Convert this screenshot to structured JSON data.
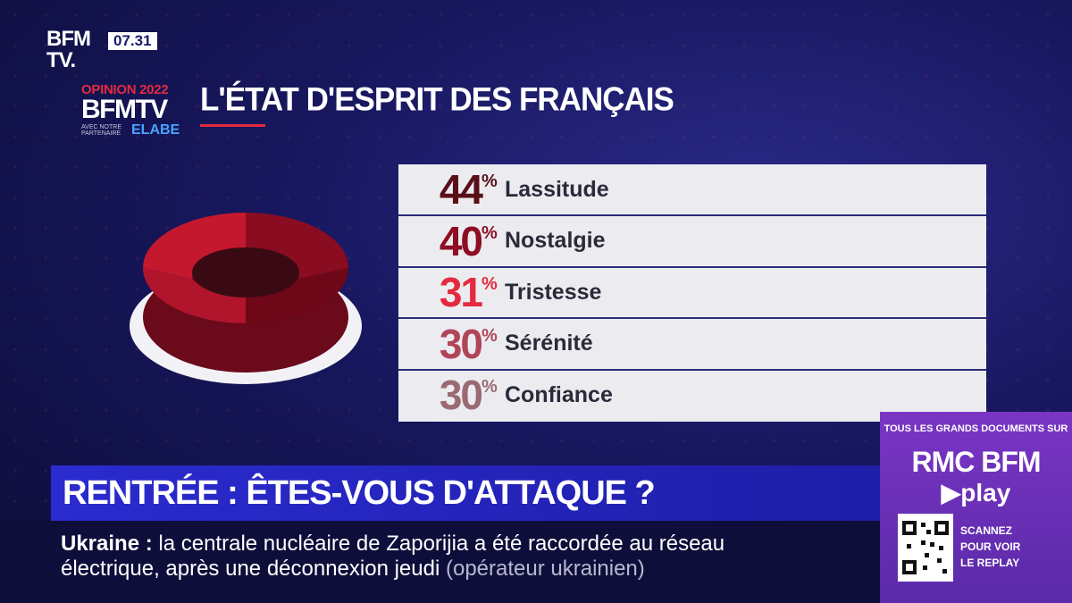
{
  "channel": {
    "logo_line1": "BFM",
    "logo_line2": "TV.",
    "time": "07.31"
  },
  "branding": {
    "opinion": "OPINION 2022",
    "brand": "BFMTV",
    "partner": "AVEC NOTRE PARTENAIRE",
    "pollster": "ELABE"
  },
  "title": "L'ÉTAT D'ESPRIT DES FRANÇAIS",
  "chart_data": {
    "type": "table",
    "categories": [
      "Lassitude",
      "Nostalgie",
      "Tristesse",
      "Sérénité",
      "Confiance"
    ],
    "values": [
      44,
      40,
      31,
      30,
      30
    ],
    "unit": "%",
    "value_colors": [
      "#5a0f18",
      "#8d0e22",
      "#e32a3f",
      "#b0455a",
      "#9a6a72"
    ]
  },
  "headline": "RENTRÉE : ÊTES-VOUS D'ATTAQUE ?",
  "ticker": {
    "topic": "Ukraine",
    "separator": ":",
    "line1": "la centrale nucléaire de Zaporijia a été raccordée au réseau",
    "line2": "électrique, après une déconnexion jeudi",
    "source": "(opérateur ukrainien)"
  },
  "promo": {
    "tagline": "TOUS LES GRANDS DOCUMENTS SUR",
    "brand": "RMC BFM",
    "play": "▶play",
    "cta_line1": "SCANNEZ",
    "cta_line2": "POUR VOIR",
    "cta_line3": "LE REPLAY"
  }
}
